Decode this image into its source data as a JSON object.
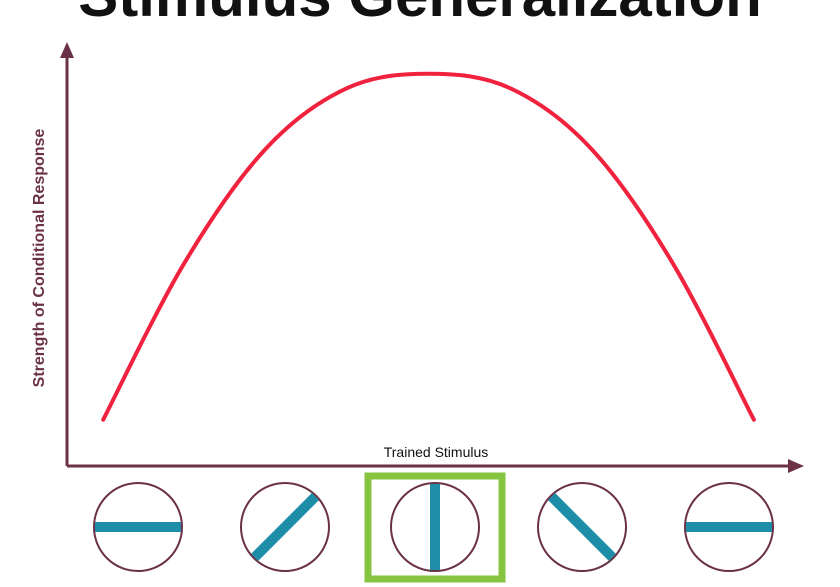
{
  "chart_data": {
    "type": "line",
    "title": "Stimulus Generalization",
    "xlabel": "Trained Stimulus",
    "ylabel": "Strength of Conditional Response",
    "x": [
      -90,
      -67.5,
      -45,
      -22.5,
      0,
      22.5,
      45,
      67.5,
      90
    ],
    "series": [
      {
        "values": [
          0.03,
          0.47,
          0.79,
          0.96,
          1.0,
          0.96,
          0.79,
          0.47,
          0.03
        ]
      }
    ],
    "xlim": [
      -100,
      100
    ],
    "ylim": [
      -0.1,
      1.05
    ],
    "grid": false,
    "legend": "none",
    "colors": {
      "curve": "#f0223e",
      "axis": "#6b3146",
      "stimulus_circle": "#6b3146",
      "stimulus_bar": "#1e8ea8",
      "highlight": "#86c440"
    },
    "stimuli": [
      {
        "name": "horizontal",
        "angle": 90,
        "highlighted": false
      },
      {
        "name": "diagonal-right",
        "angle": 45,
        "highlighted": false
      },
      {
        "name": "vertical",
        "angle": 0,
        "highlighted": true
      },
      {
        "name": "diagonal-left",
        "angle": -45,
        "highlighted": false
      },
      {
        "name": "horizontal",
        "angle": 90,
        "highlighted": false
      }
    ]
  }
}
